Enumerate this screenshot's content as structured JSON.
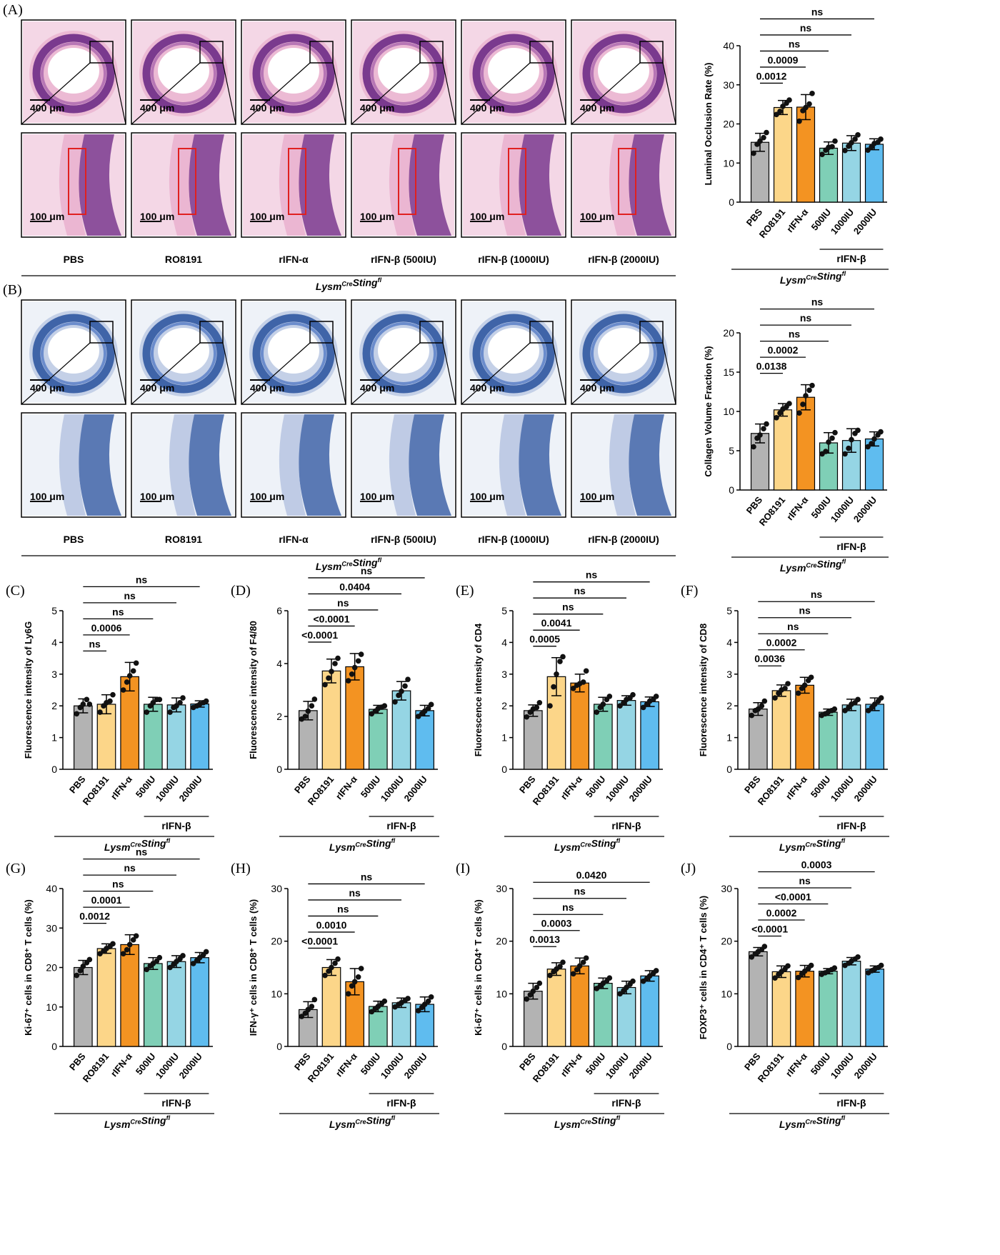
{
  "colors": {
    "PBS": "#b3b3b3",
    "RO8191": "#fcd689",
    "rIFN-α": "#f39322",
    "500IU": "#7fcfb6",
    "1000IU": "#95d5e4",
    "2000IU": "#5fbcef"
  },
  "micro_panels": [
    {
      "letter": "(A)",
      "stain": "H&E",
      "groups": [
        "PBS",
        "RO8191",
        "rIFN-α",
        "rIFN-β (500IU)",
        "rIFN-β (1000IU)",
        "rIFN-β (2000IU)"
      ],
      "scalebar_top": "400 μm",
      "scalebar_bottom": "100 μm",
      "genotype": "Lysm",
      "genotype_sup": "Cre",
      "genotype2": "Sting",
      "genotype2_sup": "fl"
    },
    {
      "letter": "(B)",
      "stain": "Masson",
      "groups": [
        "PBS",
        "RO8191",
        "rIFN-α",
        "rIFN-β (500IU)",
        "rIFN-β (1000IU)",
        "rIFN-β (2000IU)"
      ],
      "scalebar_top": "400 μm",
      "scalebar_bottom": "100 μm",
      "genotype": "Lysm",
      "genotype_sup": "Cre",
      "genotype2": "Sting",
      "genotype2_sup": "fl"
    }
  ],
  "chart_data": [
    {
      "panel": "A",
      "type": "bar",
      "categories": [
        "PBS",
        "RO8191",
        "rIFN-α",
        "500IU",
        "1000IU",
        "2000IU"
      ],
      "group_label": "rIFN-β",
      "genotype": "LysmCreStingfl",
      "ylabel": "Luminal Occlusion Rate (%)",
      "ylim": [
        0,
        40
      ],
      "yticks": [
        0,
        10,
        20,
        30,
        40
      ],
      "values": [
        15.3,
        24.2,
        24.3,
        13.8,
        15.1,
        14.8
      ],
      "sd": [
        2.3,
        1.8,
        3.2,
        1.6,
        1.9,
        1.4
      ],
      "points": [
        [
          12.5,
          14.8,
          15.6,
          16.5,
          17.8
        ],
        [
          22.4,
          23.2,
          24.5,
          25.3,
          26.1
        ],
        [
          20.7,
          23.4,
          24.2,
          25.1,
          27.8
        ],
        [
          12.2,
          13.3,
          14.0,
          14.2,
          15.6
        ],
        [
          13.2,
          14.3,
          15.2,
          16.1,
          17.2
        ],
        [
          13.3,
          14.1,
          15.0,
          15.3,
          16.1
        ]
      ],
      "comparisons": [
        {
          "from": "PBS",
          "to": "RO8191",
          "label": "0.0012"
        },
        {
          "from": "PBS",
          "to": "rIFN-α",
          "label": "0.0009"
        },
        {
          "from": "PBS",
          "to": "500IU",
          "label": "ns"
        },
        {
          "from": "PBS",
          "to": "1000IU",
          "label": "ns"
        },
        {
          "from": "PBS",
          "to": "2000IU",
          "label": "ns"
        }
      ]
    },
    {
      "panel": "B",
      "type": "bar",
      "categories": [
        "PBS",
        "RO8191",
        "rIFN-α",
        "500IU",
        "1000IU",
        "2000IU"
      ],
      "group_label": "rIFN-β",
      "genotype": "LysmCreStingfl",
      "ylabel": "Collagen Volume Fraction (%)",
      "ylim": [
        0,
        20
      ],
      "yticks": [
        0,
        5,
        10,
        15,
        20
      ],
      "values": [
        7.2,
        10.2,
        11.8,
        6.0,
        6.3,
        6.5
      ],
      "sd": [
        1.2,
        0.8,
        1.6,
        1.3,
        1.5,
        0.9
      ],
      "points": [
        [
          5.5,
          6.6,
          7.0,
          7.8,
          8.4
        ],
        [
          9.2,
          9.8,
          10.3,
          10.6,
          11.0
        ],
        [
          9.8,
          10.9,
          12.0,
          12.7,
          13.3
        ],
        [
          4.6,
          4.9,
          6.1,
          6.6,
          7.3
        ],
        [
          4.6,
          5.3,
          6.4,
          7.2,
          7.6
        ],
        [
          5.5,
          5.9,
          6.5,
          7.0,
          7.4
        ]
      ],
      "comparisons": [
        {
          "from": "PBS",
          "to": "RO8191",
          "label": "0.0138"
        },
        {
          "from": "PBS",
          "to": "rIFN-α",
          "label": "0.0002"
        },
        {
          "from": "PBS",
          "to": "500IU",
          "label": "ns"
        },
        {
          "from": "PBS",
          "to": "1000IU",
          "label": "ns"
        },
        {
          "from": "PBS",
          "to": "2000IU",
          "label": "ns"
        }
      ]
    },
    {
      "panel": "C",
      "letter": "(C)",
      "type": "bar",
      "categories": [
        "PBS",
        "RO8191",
        "rIFN-α",
        "500IU",
        "1000IU",
        "2000IU"
      ],
      "group_label": "rIFN-β",
      "genotype": "LysmCreStingfl",
      "ylabel": "Fluorescence intensity of Ly6G",
      "ylim": [
        0,
        5
      ],
      "yticks": [
        0,
        1,
        2,
        3,
        4,
        5
      ],
      "values": [
        2.0,
        2.05,
        2.92,
        2.05,
        2.03,
        2.06
      ],
      "sd": [
        0.22,
        0.3,
        0.45,
        0.22,
        0.22,
        0.1
      ],
      "points": [
        [
          1.75,
          1.95,
          2.05,
          2.2,
          2.05
        ],
        [
          1.8,
          2.0,
          2.1,
          2.15,
          2.35
        ],
        [
          2.5,
          2.75,
          2.95,
          3.1,
          3.35
        ],
        [
          1.8,
          2.0,
          2.1,
          2.2,
          2.2
        ],
        [
          1.8,
          1.95,
          2.0,
          2.1,
          2.25
        ],
        [
          1.95,
          2.0,
          2.05,
          2.1,
          2.15
        ]
      ],
      "comparisons": [
        {
          "from": "PBS",
          "to": "RO8191",
          "label": "ns"
        },
        {
          "from": "PBS",
          "to": "rIFN-α",
          "label": "0.0006"
        },
        {
          "from": "PBS",
          "to": "500IU",
          "label": "ns"
        },
        {
          "from": "PBS",
          "to": "1000IU",
          "label": "ns"
        },
        {
          "from": "PBS",
          "to": "2000IU",
          "label": "ns"
        }
      ]
    },
    {
      "panel": "D",
      "letter": "(D)",
      "type": "bar",
      "categories": [
        "PBS",
        "RO8191",
        "rIFN-α",
        "500IU",
        "1000IU",
        "2000IU"
      ],
      "group_label": "rIFN-β",
      "genotype": "LysmCreStingfl",
      "ylabel": "Fluorescence intensity of F4/80",
      "ylim": [
        0,
        6
      ],
      "yticks": [
        0,
        2,
        4,
        6
      ],
      "values": [
        2.22,
        3.72,
        3.88,
        2.27,
        2.97,
        2.22
      ],
      "sd": [
        0.35,
        0.45,
        0.5,
        0.15,
        0.35,
        0.2
      ],
      "points": [
        [
          1.9,
          2.0,
          2.2,
          2.4,
          2.65
        ],
        [
          3.2,
          3.45,
          3.7,
          4.0,
          4.2
        ],
        [
          3.35,
          3.6,
          3.85,
          4.1,
          4.35
        ],
        [
          2.1,
          2.2,
          2.3,
          2.35,
          2.4
        ],
        [
          2.55,
          2.8,
          2.95,
          3.15,
          3.4
        ],
        [
          2.0,
          2.1,
          2.2,
          2.3,
          2.45
        ]
      ],
      "comparisons": [
        {
          "from": "PBS",
          "to": "RO8191",
          "label": "<0.0001"
        },
        {
          "from": "PBS",
          "to": "rIFN-α",
          "label": "<0.0001"
        },
        {
          "from": "PBS",
          "to": "500IU",
          "label": "ns"
        },
        {
          "from": "PBS",
          "to": "1000IU",
          "label": "0.0404"
        },
        {
          "from": "PBS",
          "to": "2000IU",
          "label": "ns"
        }
      ]
    },
    {
      "panel": "E",
      "letter": "(E)",
      "type": "bar",
      "categories": [
        "PBS",
        "RO8191",
        "rIFN-α",
        "500IU",
        "1000IU",
        "2000IU"
      ],
      "group_label": "rIFN-β",
      "genotype": "LysmCreStingfl",
      "ylabel": "Fluorescence intensity of CD4",
      "ylim": [
        0,
        5
      ],
      "yticks": [
        0,
        1,
        2,
        3,
        4,
        5
      ],
      "values": [
        1.85,
        2.92,
        2.72,
        2.05,
        2.17,
        2.13
      ],
      "sd": [
        0.18,
        0.6,
        0.28,
        0.22,
        0.15,
        0.15
      ],
      "points": [
        [
          1.65,
          1.8,
          1.9,
          1.95,
          2.1
        ],
        [
          2.0,
          2.6,
          3.0,
          3.4,
          3.55
        ],
        [
          2.55,
          2.65,
          2.7,
          2.75,
          3.1
        ],
        [
          1.8,
          1.95,
          2.05,
          2.2,
          2.3
        ],
        [
          2.0,
          2.1,
          2.2,
          2.25,
          2.35
        ],
        [
          1.95,
          2.05,
          2.15,
          2.2,
          2.3
        ]
      ],
      "comparisons": [
        {
          "from": "PBS",
          "to": "RO8191",
          "label": "0.0005"
        },
        {
          "from": "PBS",
          "to": "rIFN-α",
          "label": "0.0041"
        },
        {
          "from": "PBS",
          "to": "500IU",
          "label": "ns"
        },
        {
          "from": "PBS",
          "to": "1000IU",
          "label": "ns"
        },
        {
          "from": "PBS",
          "to": "2000IU",
          "label": "ns"
        }
      ]
    },
    {
      "panel": "F",
      "letter": "(F)",
      "type": "bar",
      "categories": [
        "PBS",
        "RO8191",
        "rIFN-α",
        "500IU",
        "1000IU",
        "2000IU"
      ],
      "group_label": "rIFN-β",
      "genotype": "LysmCreStingfl",
      "ylabel": "Fluorescence intensity of CD8",
      "ylim": [
        0,
        5
      ],
      "yticks": [
        0,
        1,
        2,
        3,
        4,
        5
      ],
      "values": [
        1.9,
        2.48,
        2.65,
        1.8,
        2.03,
        2.05
      ],
      "sd": [
        0.2,
        0.18,
        0.25,
        0.1,
        0.18,
        0.2
      ],
      "points": [
        [
          1.7,
          1.85,
          1.9,
          2.0,
          2.15
        ],
        [
          2.25,
          2.4,
          2.5,
          2.55,
          2.7
        ],
        [
          2.4,
          2.55,
          2.65,
          2.8,
          2.9
        ],
        [
          1.7,
          1.75,
          1.8,
          1.85,
          1.9
        ],
        [
          1.85,
          1.95,
          2.05,
          2.1,
          2.2
        ],
        [
          1.85,
          1.95,
          2.05,
          2.15,
          2.25
        ]
      ],
      "comparisons": [
        {
          "from": "PBS",
          "to": "RO8191",
          "label": "0.0036"
        },
        {
          "from": "PBS",
          "to": "rIFN-α",
          "label": "0.0002"
        },
        {
          "from": "PBS",
          "to": "500IU",
          "label": "ns"
        },
        {
          "from": "PBS",
          "to": "1000IU",
          "label": "ns"
        },
        {
          "from": "PBS",
          "to": "2000IU",
          "label": "ns"
        }
      ]
    },
    {
      "panel": "G",
      "letter": "(G)",
      "type": "bar",
      "categories": [
        "PBS",
        "RO8191",
        "rIFN-α",
        "500IU",
        "1000IU",
        "2000IU"
      ],
      "group_label": "rIFN-β",
      "genotype": "LysmCreStingfl",
      "ylabel": "Ki-67⁺ cells in CD8⁺ T cells (%)",
      "ylim": [
        0,
        40
      ],
      "yticks": [
        0,
        10,
        20,
        30,
        40
      ],
      "values": [
        20.0,
        24.8,
        25.8,
        21.0,
        21.5,
        22.5
      ],
      "sd": [
        1.8,
        1.2,
        2.5,
        1.5,
        1.5,
        1.3
      ],
      "points": [
        [
          18.0,
          19.2,
          20.3,
          21.2,
          22.0
        ],
        [
          23.5,
          24.2,
          24.8,
          25.3,
          26.0
        ],
        [
          23.5,
          24.5,
          25.8,
          27.0,
          28.0
        ],
        [
          19.5,
          20.4,
          21.0,
          21.6,
          22.5
        ],
        [
          20.0,
          20.8,
          21.5,
          22.2,
          23.0
        ],
        [
          21.0,
          21.8,
          22.5,
          23.2,
          24.0
        ]
      ],
      "comparisons": [
        {
          "from": "PBS",
          "to": "RO8191",
          "label": "0.0012"
        },
        {
          "from": "PBS",
          "to": "rIFN-α",
          "label": "0.0001"
        },
        {
          "from": "PBS",
          "to": "500IU",
          "label": "ns"
        },
        {
          "from": "PBS",
          "to": "1000IU",
          "label": "ns"
        },
        {
          "from": "PBS",
          "to": "2000IU",
          "label": "ns"
        }
      ]
    },
    {
      "panel": "H",
      "letter": "(H)",
      "type": "bar",
      "categories": [
        "PBS",
        "RO8191",
        "rIFN-α",
        "500IU",
        "1000IU",
        "2000IU"
      ],
      "group_label": "rIFN-β",
      "genotype": "LysmCreStingfl",
      "ylabel": "IFN-γ⁺ cells in CD8⁺ T cells (%)",
      "ylim": [
        0,
        30
      ],
      "yticks": [
        0,
        10,
        20,
        30
      ],
      "values": [
        7.0,
        15.0,
        12.3,
        7.6,
        8.3,
        8.0
      ],
      "sd": [
        1.5,
        1.5,
        2.5,
        1.0,
        0.9,
        1.4
      ],
      "points": [
        [
          5.7,
          6.3,
          7.0,
          7.6,
          8.9
        ],
        [
          13.5,
          14.3,
          15.0,
          15.8,
          16.6
        ],
        [
          10.0,
          11.5,
          12.3,
          13.2,
          14.8
        ],
        [
          6.6,
          7.2,
          7.6,
          8.1,
          8.6
        ],
        [
          7.5,
          8.0,
          8.3,
          8.7,
          9.1
        ],
        [
          6.8,
          7.4,
          8.0,
          8.6,
          9.4
        ]
      ],
      "comparisons": [
        {
          "from": "PBS",
          "to": "RO8191",
          "label": "<0.0001"
        },
        {
          "from": "PBS",
          "to": "rIFN-α",
          "label": "0.0010"
        },
        {
          "from": "PBS",
          "to": "500IU",
          "label": "ns"
        },
        {
          "from": "PBS",
          "to": "1000IU",
          "label": "ns"
        },
        {
          "from": "PBS",
          "to": "2000IU",
          "label": "ns"
        }
      ]
    },
    {
      "panel": "I",
      "letter": "(I)",
      "type": "bar",
      "categories": [
        "PBS",
        "RO8191",
        "rIFN-α",
        "500IU",
        "1000IU",
        "2000IU"
      ],
      "group_label": "rIFN-β",
      "genotype": "LysmCreStingfl",
      "ylabel": "Ki-67⁺ cells in CD4⁺ T cells (%)",
      "ylim": [
        0,
        30
      ],
      "yticks": [
        0,
        10,
        20,
        30
      ],
      "values": [
        10.5,
        14.7,
        15.3,
        12.0,
        11.2,
        13.4
      ],
      "sd": [
        1.5,
        1.2,
        1.5,
        1.0,
        1.2,
        1.0
      ],
      "points": [
        [
          9.0,
          9.8,
          10.5,
          11.2,
          12.0
        ],
        [
          13.5,
          14.2,
          14.7,
          15.2,
          16.0
        ],
        [
          13.8,
          14.6,
          15.3,
          16.0,
          16.8
        ],
        [
          11.0,
          11.5,
          12.0,
          12.4,
          13.0
        ],
        [
          10.0,
          10.6,
          11.2,
          11.8,
          12.4
        ],
        [
          12.4,
          12.9,
          13.4,
          13.9,
          14.4
        ]
      ],
      "comparisons": [
        {
          "from": "PBS",
          "to": "RO8191",
          "label": "0.0013"
        },
        {
          "from": "PBS",
          "to": "rIFN-α",
          "label": "0.0003"
        },
        {
          "from": "PBS",
          "to": "500IU",
          "label": "ns"
        },
        {
          "from": "PBS",
          "to": "1000IU",
          "label": "ns"
        },
        {
          "from": "PBS",
          "to": "2000IU",
          "label": "0.0420"
        }
      ]
    },
    {
      "panel": "J",
      "letter": "(J)",
      "type": "bar",
      "categories": [
        "PBS",
        "RO8191",
        "rIFN-α",
        "500IU",
        "1000IU",
        "2000IU"
      ],
      "group_label": "rIFN-β",
      "genotype": "LysmCreStingfl",
      "ylabel": "FOXP3⁺ cells in CD4⁺ T cells (%)",
      "ylim": [
        0,
        30
      ],
      "yticks": [
        0,
        10,
        20,
        30
      ],
      "values": [
        18.0,
        14.2,
        14.3,
        14.3,
        16.2,
        14.7
      ],
      "sd": [
        0.8,
        1.1,
        1.1,
        0.5,
        0.7,
        0.6
      ],
      "points": [
        [
          17.0,
          17.6,
          18.0,
          18.4,
          19.0
        ],
        [
          13.0,
          13.7,
          14.2,
          14.7,
          15.3
        ],
        [
          13.1,
          13.8,
          14.3,
          14.8,
          15.4
        ],
        [
          13.7,
          14.0,
          14.3,
          14.6,
          14.9
        ],
        [
          15.4,
          15.8,
          16.2,
          16.6,
          17.0
        ],
        [
          14.0,
          14.4,
          14.7,
          15.0,
          15.4
        ]
      ],
      "comparisons": [
        {
          "from": "PBS",
          "to": "RO8191",
          "label": "<0.0001"
        },
        {
          "from": "PBS",
          "to": "rIFN-α",
          "label": "0.0002"
        },
        {
          "from": "PBS",
          "to": "500IU",
          "label": "<0.0001"
        },
        {
          "from": "PBS",
          "to": "1000IU",
          "label": "ns"
        },
        {
          "from": "PBS",
          "to": "2000IU",
          "label": "0.0003"
        }
      ]
    }
  ]
}
